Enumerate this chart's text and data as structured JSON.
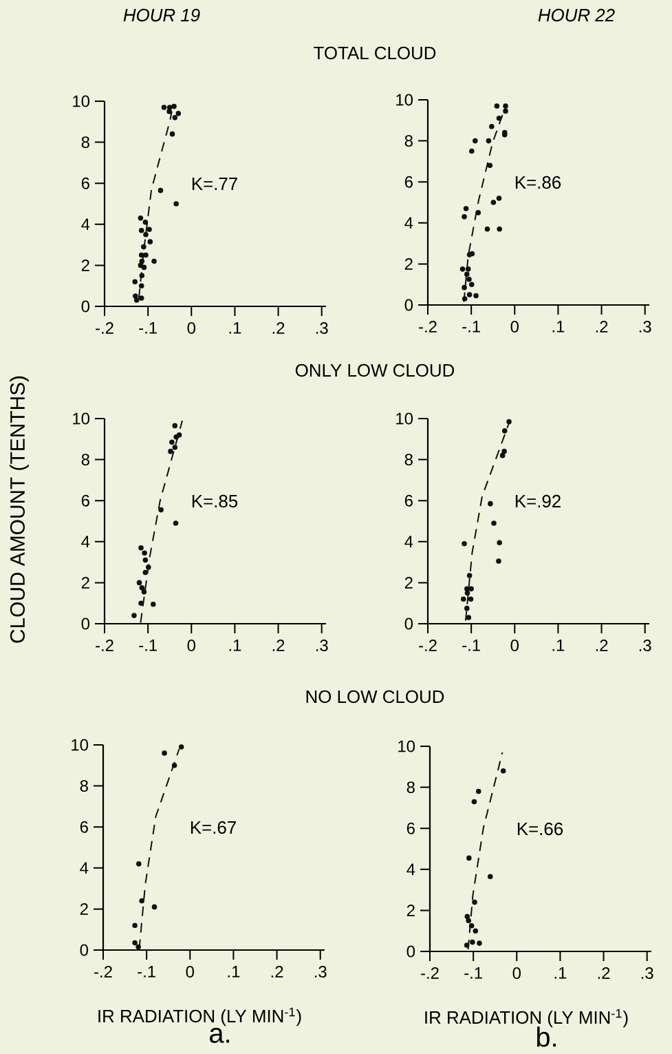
{
  "chart_data": [
    {
      "type": "scatter",
      "title": "HOUR 19",
      "subtitle": "TOTAL CLOUD",
      "ylabel": "CLOUD AMOUNT (TENTHS)",
      "annotations": [
        "K=.77"
      ],
      "xlim": [
        -0.2,
        0.31
      ],
      "ylim": [
        0,
        10
      ],
      "xticks": [
        {
          "value": -0.2,
          "label": "-.2"
        },
        {
          "value": -0.1,
          "label": "-.1"
        },
        0,
        {
          "value": 0.1,
          "label": ".1"
        },
        {
          "value": 0.2,
          "label": ".2"
        },
        {
          "value": 0.3,
          "label": ".3"
        }
      ],
      "yticks": [
        0,
        2,
        4,
        6,
        8,
        10
      ],
      "series": [
        {
          "type": "scatter",
          "marker": "circle",
          "color": "#111111",
          "x": [
            -0.063,
            -0.05,
            -0.04,
            -0.051,
            -0.038,
            -0.03,
            -0.044,
            -0.071,
            -0.035,
            -0.117,
            -0.106,
            -0.115,
            -0.097,
            -0.105,
            -0.095,
            -0.11,
            -0.115,
            -0.105,
            -0.086,
            -0.114,
            -0.117,
            -0.109,
            -0.114,
            -0.115,
            -0.13,
            -0.129,
            -0.126,
            -0.115
          ],
          "values": [
            9.7,
            9.7,
            9.75,
            9.5,
            9.2,
            9.4,
            8.4,
            5.65,
            5.0,
            4.3,
            4.1,
            3.7,
            3.75,
            3.5,
            3.15,
            2.9,
            2.5,
            2.5,
            2.2,
            2.2,
            2.0,
            1.9,
            1.5,
            1.0,
            1.2,
            0.5,
            0.3,
            0.4
          ]
        },
        {
          "type": "line",
          "marker": "none",
          "line_style": "dashed",
          "color": "#111111",
          "x": [
            -0.121,
            -0.108,
            -0.092,
            -0.05,
            -0.045
          ],
          "values": [
            0.4,
            3.0,
            5.7,
            9.0,
            9.5
          ]
        }
      ]
    },
    {
      "type": "scatter",
      "title": "HOUR 22",
      "annotations": [
        "K=.86"
      ],
      "xlim": [
        -0.2,
        0.31
      ],
      "ylim": [
        0,
        10
      ],
      "xticks": [
        {
          "value": -0.2,
          "label": "-.2"
        },
        {
          "value": -0.1,
          "label": "-.1"
        },
        0,
        {
          "value": 0.1,
          "label": ".1"
        },
        {
          "value": 0.2,
          "label": ".2"
        },
        {
          "value": 0.3,
          "label": ".3"
        }
      ],
      "yticks": [
        0,
        2,
        4,
        6,
        8,
        10
      ],
      "series": [
        {
          "type": "scatter",
          "marker": "circle",
          "color": "#111111",
          "x": [
            -0.041,
            -0.021,
            -0.021,
            -0.036,
            -0.023,
            -0.023,
            -0.053,
            -0.091,
            -0.06,
            -0.099,
            -0.057,
            -0.036,
            -0.049,
            -0.112,
            -0.116,
            -0.084,
            -0.063,
            -0.035,
            -0.098,
            -0.104,
            -0.12,
            -0.107,
            -0.11,
            -0.105,
            -0.099,
            -0.116,
            -0.104,
            -0.089,
            -0.115
          ],
          "values": [
            9.7,
            9.7,
            9.45,
            9.1,
            8.4,
            8.3,
            8.7,
            8.0,
            8.0,
            7.5,
            6.8,
            5.2,
            5.0,
            4.7,
            4.3,
            4.5,
            3.7,
            3.7,
            2.5,
            2.45,
            1.75,
            1.75,
            1.5,
            1.25,
            1.0,
            0.85,
            0.5,
            0.45,
            0.3
          ]
        },
        {
          "type": "line",
          "marker": "none",
          "line_style": "dashed",
          "color": "#111111",
          "x": [
            -0.117,
            -0.107,
            -0.083,
            -0.051,
            -0.019
          ],
          "values": [
            0.15,
            2.4,
            5.1,
            7.9,
            9.8
          ]
        }
      ]
    },
    {
      "type": "scatter",
      "subtitle": "ONLY LOW CLOUD",
      "annotations": [
        "K=.85"
      ],
      "xlim": [
        -0.2,
        0.31
      ],
      "ylim": [
        0,
        10
      ],
      "xticks": [
        {
          "value": -0.2,
          "label": "-.2"
        },
        {
          "value": -0.1,
          "label": "-.1"
        },
        0,
        {
          "value": 0.1,
          "label": ".1"
        },
        {
          "value": 0.2,
          "label": ".2"
        },
        {
          "value": 0.3,
          "label": ".3"
        }
      ],
      "yticks": [
        0,
        2,
        4,
        6,
        8,
        10
      ],
      "series": [
        {
          "type": "scatter",
          "marker": "circle",
          "color": "#111111",
          "x": [
            -0.038,
            -0.028,
            -0.035,
            -0.045,
            -0.038,
            -0.048,
            -0.07,
            -0.036,
            -0.116,
            -0.108,
            -0.106,
            -0.099,
            -0.106,
            -0.12,
            -0.114,
            -0.109,
            -0.116,
            -0.088,
            -0.132
          ],
          "values": [
            9.65,
            9.2,
            9.1,
            8.85,
            8.6,
            8.4,
            5.55,
            4.9,
            3.7,
            3.45,
            3.1,
            2.75,
            2.5,
            2.0,
            1.75,
            1.55,
            1.0,
            0.95,
            0.4
          ]
        },
        {
          "type": "line",
          "marker": "none",
          "line_style": "dashed",
          "color": "#111111",
          "x": [
            -0.117,
            -0.096,
            -0.072,
            -0.021
          ],
          "values": [
            0.05,
            3.25,
            6.0,
            9.9
          ]
        }
      ]
    },
    {
      "type": "scatter",
      "annotations": [
        "K=.92"
      ],
      "xlim": [
        -0.2,
        0.31
      ],
      "ylim": [
        0,
        10
      ],
      "xticks": [
        {
          "value": -0.2,
          "label": "-.2"
        },
        {
          "value": -0.1,
          "label": "-.1"
        },
        0,
        {
          "value": 0.1,
          "label": ".1"
        },
        {
          "value": 0.2,
          "label": ".2"
        },
        {
          "value": 0.3,
          "label": ".3"
        }
      ],
      "yticks": [
        0,
        2,
        4,
        6,
        8,
        10
      ],
      "series": [
        {
          "type": "scatter",
          "marker": "circle",
          "color": "#111111",
          "x": [
            -0.013,
            -0.023,
            -0.024,
            -0.028,
            -0.056,
            -0.048,
            -0.116,
            -0.035,
            -0.037,
            -0.104,
            -0.11,
            -0.1,
            -0.109,
            -0.118,
            -0.101,
            -0.11,
            -0.106
          ],
          "values": [
            9.85,
            9.4,
            8.4,
            8.2,
            5.85,
            4.9,
            3.9,
            3.95,
            3.05,
            2.35,
            1.7,
            1.7,
            1.5,
            1.2,
            1.2,
            0.75,
            0.3
          ]
        },
        {
          "type": "line",
          "marker": "none",
          "line_style": "dashed",
          "color": "#111111",
          "x": [
            -0.113,
            -0.098,
            -0.075,
            -0.011
          ],
          "values": [
            0.15,
            3.45,
            6.2,
            9.9
          ]
        }
      ]
    },
    {
      "type": "scatter",
      "subtitle": "NO LOW CLOUD",
      "xlabel": "IR RADIATION (LY MIN$^{-1}$)",
      "annotations": [
        "K=.67",
        "a."
      ],
      "xlim": [
        -0.2,
        0.31
      ],
      "ylim": [
        0,
        10
      ],
      "xticks": [
        {
          "value": -0.2,
          "label": "-.2"
        },
        {
          "value": -0.1,
          "label": "-.1"
        },
        0,
        {
          "value": 0.1,
          "label": ".1"
        },
        {
          "value": 0.2,
          "label": ".2"
        },
        {
          "value": 0.3,
          "label": ".3"
        }
      ],
      "yticks": [
        0,
        2,
        4,
        6,
        8,
        10
      ],
      "series": [
        {
          "type": "scatter",
          "marker": "circle",
          "color": "#111111",
          "x": [
            -0.02,
            -0.059,
            -0.036,
            -0.118,
            -0.082,
            -0.111,
            -0.127,
            -0.127,
            -0.119
          ],
          "values": [
            9.9,
            9.6,
            9.0,
            4.2,
            2.1,
            2.4,
            1.2,
            0.35,
            0.15
          ]
        },
        {
          "type": "line",
          "marker": "none",
          "line_style": "dashed",
          "color": "#111111",
          "x": [
            -0.117,
            -0.103,
            -0.079,
            -0.025
          ],
          "values": [
            0.05,
            3.2,
            6.5,
            9.8
          ]
        }
      ]
    },
    {
      "type": "scatter",
      "xlabel": "IR RADIATION (LY MIN$^{-1}$)",
      "annotations": [
        "K=.66",
        "b."
      ],
      "xlim": [
        -0.2,
        0.31
      ],
      "ylim": [
        0,
        10
      ],
      "xticks": [
        {
          "value": -0.2,
          "label": "-.2"
        },
        {
          "value": -0.1,
          "label": "-.1"
        },
        0,
        {
          "value": 0.1,
          "label": ".1"
        },
        {
          "value": 0.2,
          "label": ".2"
        },
        {
          "value": 0.3,
          "label": ".3"
        }
      ],
      "yticks": [
        0,
        2,
        4,
        6,
        8,
        10
      ],
      "series": [
        {
          "type": "scatter",
          "marker": "circle",
          "color": "#111111",
          "x": [
            -0.031,
            -0.088,
            -0.098,
            -0.11,
            -0.061,
            -0.097,
            -0.114,
            -0.111,
            -0.104,
            -0.095,
            -0.102,
            -0.086,
            -0.115
          ],
          "values": [
            8.8,
            7.8,
            7.3,
            4.55,
            3.65,
            2.4,
            1.7,
            1.5,
            1.25,
            1.0,
            0.45,
            0.4,
            0.3
          ]
        },
        {
          "type": "line",
          "marker": "none",
          "line_style": "dashed",
          "color": "#111111",
          "x": [
            -0.112,
            -0.101,
            -0.077,
            -0.033
          ],
          "values": [
            0.1,
            2.75,
            6.0,
            9.7
          ]
        }
      ]
    }
  ]
}
